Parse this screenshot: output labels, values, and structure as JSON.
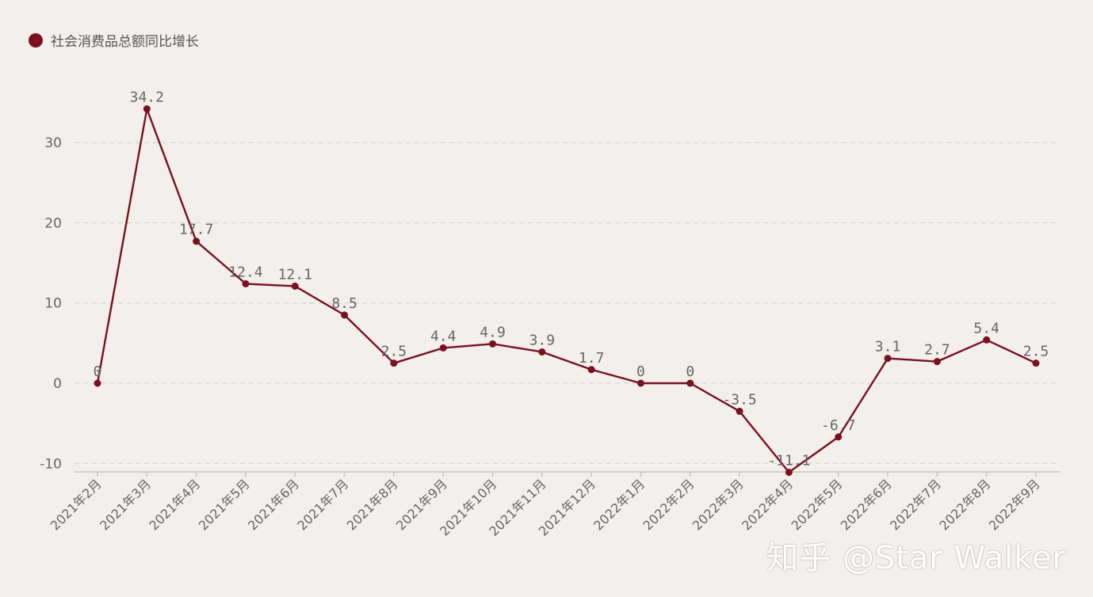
{
  "colors": {
    "series": "#7a1020",
    "grid": "#d9d5d1",
    "axis": "#c9c5c1",
    "text": "#666666",
    "background": "#f2efec"
  },
  "legend": {
    "label": "社会消费品总额同比增长",
    "icon": "filled-circle"
  },
  "watermark": "知乎 @Star Walker",
  "chart_data": {
    "type": "line",
    "title": "",
    "xlabel": "",
    "ylabel": "",
    "categories": [
      "2021年2月",
      "2021年3月",
      "2021年4月",
      "2021年5月",
      "2021年6月",
      "2021年7月",
      "2021年8月",
      "2021年9月",
      "2021年10月",
      "2021年11月",
      "2021年12月",
      "2022年1月",
      "2022年2月",
      "2022年3月",
      "2022年4月",
      "2022年5月",
      "2022年6月",
      "2022年7月",
      "2022年8月",
      "2022年9月"
    ],
    "series": [
      {
        "name": "社会消费品总额同比增长",
        "values": [
          0,
          34.2,
          17.7,
          12.4,
          12.1,
          8.5,
          2.5,
          4.4,
          4.9,
          3.9,
          1.7,
          0,
          0,
          -3.5,
          -11.1,
          -6.7,
          3.1,
          2.7,
          5.4,
          2.5
        ],
        "labels": [
          "0",
          "34.2",
          "17.7",
          "12.4",
          "12.1",
          "8.5",
          "2.5",
          "4.4",
          "4.9",
          "3.9",
          "1.7",
          "0",
          "0",
          "-3.5",
          "-11.1",
          "-6.7",
          "3.1",
          "2.7",
          "5.4",
          "2.5"
        ]
      }
    ],
    "yticks": [
      -10,
      0,
      10,
      20,
      30
    ],
    "ylim": [
      -11.1,
      35
    ],
    "grid": true,
    "legend_position": "top-left"
  }
}
